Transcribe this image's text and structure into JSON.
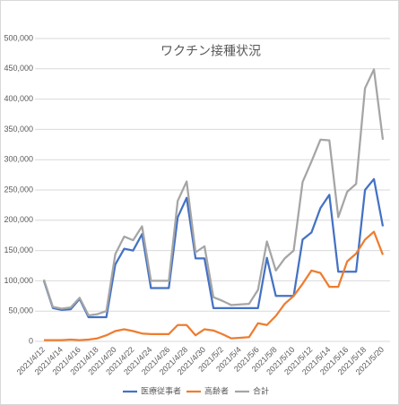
{
  "chart_data": {
    "type": "line",
    "title": "ワクチン接種状況",
    "categories": [
      "2021/4/12",
      null,
      "2021/4/14",
      null,
      "2021/4/16",
      null,
      "2021/4/18",
      null,
      "2021/4/20",
      null,
      "2021/4/22",
      null,
      "2021/4/24",
      null,
      "2021/4/26",
      null,
      "2021/4/28",
      null,
      "2021/4/30",
      null,
      "2021/5/2",
      null,
      "2021/5/4",
      null,
      "2021/5/6",
      null,
      "2021/5/8",
      null,
      "2021/5/10",
      null,
      "2021/5/12",
      null,
      "2021/5/14",
      null,
      "2021/5/16",
      null,
      "2021/5/18",
      null,
      "2021/5/20"
    ],
    "series": [
      {
        "name": "医療従事者",
        "color": "#4472c4",
        "values": [
          100000,
          55000,
          52000,
          53000,
          70000,
          40000,
          40000,
          40000,
          127000,
          153000,
          150000,
          177000,
          88000,
          88000,
          88000,
          205000,
          237000,
          137000,
          137000,
          55000,
          55000,
          55000,
          55000,
          55000,
          55000,
          138000,
          75000,
          75000,
          75000,
          168000,
          180000,
          220000,
          242000,
          115000,
          115000,
          115000,
          250000,
          268000,
          190000
        ]
      },
      {
        "name": "高齢者",
        "color": "#ed7d31",
        "values": [
          2000,
          2000,
          2000,
          3000,
          2000,
          3000,
          5000,
          10000,
          17000,
          20000,
          17000,
          13000,
          12000,
          12000,
          12000,
          27000,
          27000,
          10000,
          20000,
          18000,
          12000,
          5000,
          6000,
          7000,
          30000,
          27000,
          42000,
          62000,
          75000,
          95000,
          117000,
          113000,
          90000,
          90000,
          132000,
          145000,
          168000,
          181000,
          143000
        ]
      },
      {
        "name": "合計",
        "color": "#a5a5a5",
        "values": [
          102000,
          57000,
          54000,
          56000,
          72000,
          43000,
          45000,
          50000,
          144000,
          173000,
          167000,
          190000,
          100000,
          100000,
          100000,
          232000,
          264000,
          147000,
          157000,
          73000,
          67000,
          60000,
          61000,
          62000,
          85000,
          165000,
          117000,
          137000,
          150000,
          263000,
          297000,
          333000,
          332000,
          205000,
          247000,
          260000,
          418000,
          449000,
          333000
        ]
      }
    ],
    "ylim": [
      0,
      500000
    ],
    "yticks": [
      0,
      {
        "value": 50000,
        "label": "50,000"
      },
      {
        "value": 100000,
        "label": "100,000"
      },
      {
        "value": 150000,
        "label": "150,000"
      },
      {
        "value": 200000,
        "label": "200,000"
      },
      {
        "value": 250000,
        "label": "250,000"
      },
      {
        "value": 300000,
        "label": "300,000"
      },
      {
        "value": 350000,
        "label": "350,000"
      },
      {
        "value": 400000,
        "label": "400,000"
      },
      {
        "value": 450000,
        "label": "450,000"
      },
      {
        "value": 500000,
        "label": "500,000"
      }
    ],
    "grid": true,
    "legend": "bottom"
  }
}
